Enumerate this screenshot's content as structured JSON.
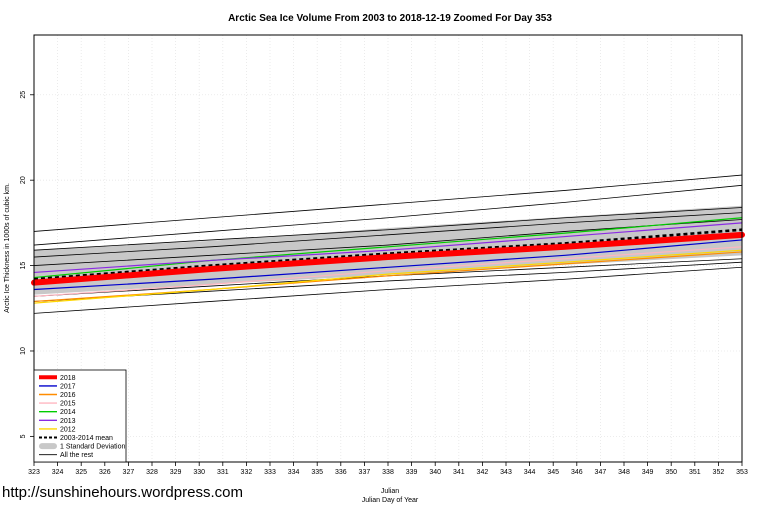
{
  "chart_data": {
    "type": "line",
    "title": "Arctic Sea Ice Volume From 2003 to 2018-12-19 Zoomed For Day 353",
    "xlabel": "Julian",
    "xlabel2": "Julian Day of Year",
    "ylabel": "Arctic Ice Thickness in 1000s of cubic km.",
    "xlim": [
      323,
      353
    ],
    "ylim": [
      3.5,
      28.5
    ],
    "xticks": [
      323,
      324,
      325,
      326,
      327,
      328,
      329,
      330,
      331,
      332,
      333,
      334,
      335,
      336,
      337,
      338,
      339,
      340,
      341,
      342,
      343,
      344,
      345,
      346,
      347,
      348,
      349,
      350,
      351,
      352,
      353
    ],
    "yticks": [
      5,
      10,
      15,
      20,
      25
    ],
    "grid": true,
    "legend_position": "bottom-left",
    "band": {
      "name": "1 Standard Deviation",
      "color": "#c8c8c8",
      "lower": [
        13.3,
        13.9,
        14.45,
        15.05,
        15.6
      ],
      "upper": [
        15.9,
        16.45,
        17.2,
        17.85,
        18.5
      ]
    },
    "series": [
      {
        "name": "2018",
        "color": "#ff0000",
        "style": "thick",
        "values": [
          14.0,
          14.8,
          15.5,
          16.1,
          16.8
        ]
      },
      {
        "name": "2017",
        "color": "#0000cc",
        "style": "solid",
        "values": [
          13.6,
          14.2,
          14.9,
          15.6,
          16.5
        ]
      },
      {
        "name": "2016",
        "color": "#ff8c00",
        "style": "solid",
        "values": [
          12.9,
          13.6,
          14.4,
          15.1,
          15.8
        ]
      },
      {
        "name": "2015",
        "color": "#ffb6c1",
        "style": "solid",
        "values": [
          13.2,
          13.9,
          14.7,
          15.4,
          16.1
        ]
      },
      {
        "name": "2014",
        "color": "#00cc00",
        "style": "solid",
        "values": [
          14.3,
          15.3,
          16.1,
          16.9,
          17.8
        ]
      },
      {
        "name": "2013",
        "color": "#8a2be2",
        "style": "solid",
        "values": [
          14.6,
          15.3,
          15.9,
          16.7,
          17.5
        ]
      },
      {
        "name": "2012",
        "color": "#ffd700",
        "style": "solid",
        "values": [
          12.8,
          13.6,
          14.5,
          15.2,
          15.9
        ]
      },
      {
        "name": "2003-2014 mean",
        "color": "#000000",
        "style": "dashed",
        "values": [
          14.2,
          15.0,
          15.7,
          16.3,
          17.1
        ]
      },
      {
        "name": "All the rest",
        "color": "#000000",
        "style": "thin",
        "values": [
          17.0,
          17.8,
          18.6,
          19.4,
          20.3
        ]
      },
      {
        "name": "All the rest",
        "color": "#000000",
        "style": "thin",
        "values": [
          16.2,
          17.0,
          17.8,
          18.7,
          19.7
        ]
      },
      {
        "name": "All the rest",
        "color": "#000000",
        "style": "thin",
        "values": [
          15.9,
          16.5,
          17.1,
          17.8,
          18.4
        ]
      },
      {
        "name": "All the rest",
        "color": "#000000",
        "style": "thin",
        "values": [
          15.5,
          16.1,
          16.8,
          17.5,
          18.1
        ]
      },
      {
        "name": "All the rest",
        "color": "#000000",
        "style": "thin",
        "values": [
          15.0,
          15.6,
          16.2,
          17.0,
          17.7
        ]
      },
      {
        "name": "All the rest",
        "color": "#000000",
        "style": "thin",
        "values": [
          13.2,
          13.8,
          14.4,
          14.9,
          15.4
        ]
      },
      {
        "name": "All the rest",
        "color": "#000000",
        "style": "thin",
        "values": [
          12.9,
          13.5,
          14.1,
          14.6,
          15.2
        ]
      },
      {
        "name": "All the rest",
        "color": "#000000",
        "style": "thin",
        "values": [
          12.2,
          12.9,
          13.6,
          14.2,
          14.9
        ]
      }
    ],
    "series_x": [
      323,
      330.5,
      338,
      345.5,
      353
    ],
    "legend": [
      {
        "label": "2018",
        "color": "#ff0000",
        "style": "thick"
      },
      {
        "label": "2017",
        "color": "#0000cc",
        "style": "solid"
      },
      {
        "label": "2016",
        "color": "#ff8c00",
        "style": "solid"
      },
      {
        "label": "2015",
        "color": "#ffb6c1",
        "style": "solid"
      },
      {
        "label": "2014",
        "color": "#00cc00",
        "style": "solid"
      },
      {
        "label": "2013",
        "color": "#8a2be2",
        "style": "solid"
      },
      {
        "label": "2012",
        "color": "#ffd700",
        "style": "solid"
      },
      {
        "label": "2003-2014 mean",
        "color": "#000000",
        "style": "dashed"
      },
      {
        "label": "1 Standard Deviation",
        "color": "#c8c8c8",
        "style": "band"
      },
      {
        "label": "All the rest",
        "color": "#000000",
        "style": "thin"
      }
    ]
  },
  "watermark": "http://sunshinehours.wordpress.com"
}
